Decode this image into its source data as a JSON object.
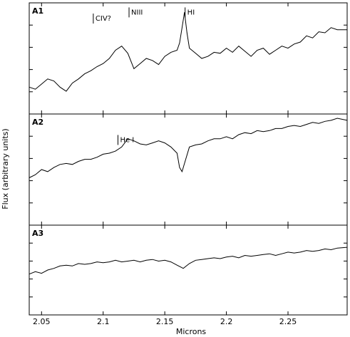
{
  "chart_data": {
    "type": "line",
    "title": "",
    "xlabel": "Microns",
    "ylabel": "Flux (arbitrary units)",
    "xlim": [
      2.04,
      2.298
    ],
    "xticks": [
      2.05,
      2.1,
      2.15,
      2.2,
      2.25
    ],
    "xtick_labels": [
      "2.05",
      "2.1",
      "2.15",
      "2.2",
      "2.25"
    ],
    "grid": false,
    "legend": "none",
    "line_color": "#000000",
    "panels": [
      {
        "label": "A1",
        "ylim": [
          0,
          1
        ],
        "x": [
          2.04,
          2.045,
          2.05,
          2.055,
          2.06,
          2.065,
          2.07,
          2.075,
          2.08,
          2.085,
          2.09,
          2.095,
          2.1,
          2.105,
          2.11,
          2.115,
          2.12,
          2.125,
          2.13,
          2.135,
          2.14,
          2.145,
          2.15,
          2.155,
          2.16,
          2.162,
          2.164,
          2.166,
          2.168,
          2.17,
          2.175,
          2.18,
          2.185,
          2.19,
          2.195,
          2.2,
          2.205,
          2.21,
          2.215,
          2.22,
          2.225,
          2.23,
          2.235,
          2.24,
          2.245,
          2.25,
          2.255,
          2.26,
          2.265,
          2.27,
          2.275,
          2.28,
          2.285,
          2.29,
          2.298
        ],
        "y": [
          0.22,
          0.2,
          0.25,
          0.3,
          0.28,
          0.22,
          0.18,
          0.26,
          0.3,
          0.35,
          0.38,
          0.42,
          0.45,
          0.5,
          0.58,
          0.62,
          0.55,
          0.4,
          0.45,
          0.5,
          0.48,
          0.44,
          0.52,
          0.56,
          0.58,
          0.65,
          0.8,
          0.95,
          0.75,
          0.6,
          0.55,
          0.5,
          0.52,
          0.56,
          0.55,
          0.6,
          0.56,
          0.62,
          0.57,
          0.52,
          0.58,
          0.6,
          0.54,
          0.58,
          0.62,
          0.6,
          0.64,
          0.66,
          0.72,
          0.7,
          0.76,
          0.75,
          0.8,
          0.78,
          0.78
        ]
      },
      {
        "label": "A2",
        "ylim": [
          0,
          1
        ],
        "x": [
          2.04,
          2.045,
          2.05,
          2.055,
          2.06,
          2.065,
          2.07,
          2.075,
          2.08,
          2.085,
          2.09,
          2.095,
          2.1,
          2.105,
          2.11,
          2.115,
          2.12,
          2.125,
          2.13,
          2.135,
          2.14,
          2.145,
          2.15,
          2.155,
          2.16,
          2.162,
          2.164,
          2.166,
          2.17,
          2.175,
          2.18,
          2.185,
          2.19,
          2.195,
          2.2,
          2.205,
          2.21,
          2.215,
          2.22,
          2.225,
          2.23,
          2.235,
          2.24,
          2.245,
          2.25,
          2.255,
          2.26,
          2.265,
          2.27,
          2.275,
          2.28,
          2.285,
          2.29,
          2.298
        ],
        "y": [
          0.42,
          0.45,
          0.5,
          0.48,
          0.52,
          0.55,
          0.56,
          0.55,
          0.58,
          0.6,
          0.6,
          0.62,
          0.65,
          0.66,
          0.68,
          0.72,
          0.8,
          0.78,
          0.75,
          0.74,
          0.76,
          0.78,
          0.76,
          0.72,
          0.66,
          0.52,
          0.48,
          0.56,
          0.72,
          0.74,
          0.75,
          0.78,
          0.8,
          0.8,
          0.82,
          0.8,
          0.84,
          0.86,
          0.85,
          0.88,
          0.87,
          0.88,
          0.9,
          0.9,
          0.92,
          0.93,
          0.92,
          0.94,
          0.96,
          0.95,
          0.97,
          0.98,
          1.0,
          0.98
        ]
      },
      {
        "label": "A3",
        "ylim": [
          0,
          1
        ],
        "x": [
          2.04,
          2.045,
          2.05,
          2.055,
          2.06,
          2.065,
          2.07,
          2.075,
          2.08,
          2.085,
          2.09,
          2.095,
          2.1,
          2.105,
          2.11,
          2.115,
          2.12,
          2.125,
          2.13,
          2.135,
          2.14,
          2.145,
          2.15,
          2.155,
          2.16,
          2.165,
          2.17,
          2.175,
          2.18,
          2.185,
          2.19,
          2.195,
          2.2,
          2.205,
          2.21,
          2.215,
          2.22,
          2.225,
          2.23,
          2.235,
          2.24,
          2.245,
          2.25,
          2.255,
          2.26,
          2.265,
          2.27,
          2.275,
          2.28,
          2.285,
          2.29,
          2.298
        ],
        "y": [
          0.45,
          0.48,
          0.46,
          0.5,
          0.52,
          0.55,
          0.56,
          0.55,
          0.58,
          0.57,
          0.58,
          0.6,
          0.59,
          0.6,
          0.62,
          0.6,
          0.61,
          0.62,
          0.6,
          0.62,
          0.63,
          0.61,
          0.62,
          0.6,
          0.56,
          0.52,
          0.58,
          0.62,
          0.63,
          0.64,
          0.65,
          0.64,
          0.66,
          0.67,
          0.65,
          0.68,
          0.67,
          0.68,
          0.69,
          0.7,
          0.68,
          0.7,
          0.72,
          0.71,
          0.72,
          0.74,
          0.73,
          0.74,
          0.76,
          0.75,
          0.77,
          0.78
        ]
      }
    ],
    "annotations": [
      {
        "panel": "A1",
        "text": "CIV?",
        "x": 2.092,
        "y": 0.84
      },
      {
        "panel": "A1",
        "text": "NIII",
        "x": 2.121,
        "y": 0.9
      },
      {
        "panel": "A1",
        "text": "HI",
        "x": 2.1665,
        "y": 0.9
      },
      {
        "panel": "A2",
        "text": "He I",
        "x": 2.112,
        "y": 0.74
      }
    ]
  }
}
